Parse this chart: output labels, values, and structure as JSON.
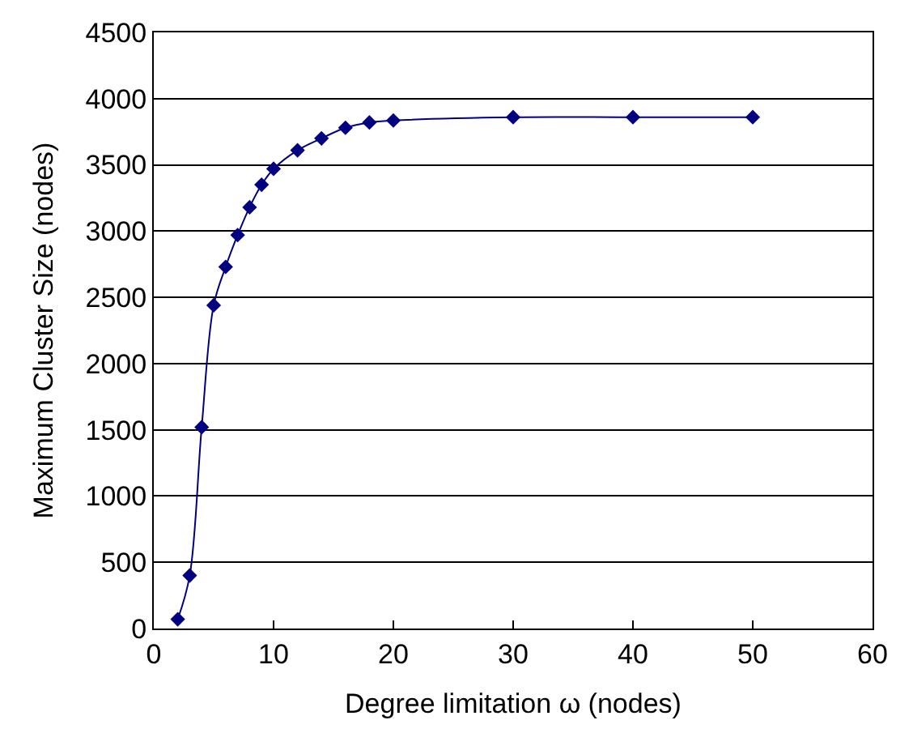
{
  "chart_data": {
    "type": "line",
    "xlabel": "Degree limitation ω (nodes)",
    "ylabel": "Maximum Cluster Size (nodes)",
    "x": [
      2,
      3,
      4,
      5,
      6,
      7,
      8,
      9,
      10,
      12,
      14,
      16,
      18,
      20,
      30,
      40,
      50
    ],
    "series": [
      {
        "color": "#000080",
        "values": [
          70,
          400,
          1520,
          2440,
          2730,
          2970,
          3180,
          3350,
          3470,
          3610,
          3700,
          3780,
          3820,
          3835,
          3860,
          3860,
          3860
        ]
      }
    ],
    "xlim": [
      0,
      60
    ],
    "xticks": [
      0,
      10,
      20,
      30,
      40,
      50,
      60
    ],
    "ylim": [
      0,
      4500
    ],
    "yticks": [
      0,
      500,
      1000,
      1500,
      2000,
      2500,
      3000,
      3500,
      4000,
      4500
    ],
    "grid": "y",
    "marker": "diamond",
    "line_style": "solid",
    "legend": false
  }
}
